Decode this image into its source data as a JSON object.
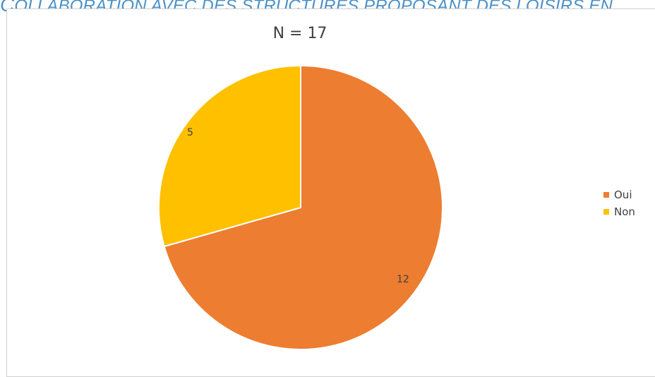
{
  "page": {
    "heading_lead": "C",
    "heading_rest": "OLLABORATION AVEC DES STRUCTURES PROPOSANT DES LOISIRS EN"
  },
  "chart_data": {
    "type": "pie",
    "title": "N = 17",
    "categories": [
      "Oui",
      "Non"
    ],
    "values": [
      12,
      5
    ],
    "data_labels": [
      "12",
      "5"
    ],
    "colors": [
      "#ed7d31",
      "#ffc000"
    ],
    "legend_placement": "right",
    "slice_order": "clockwise from top"
  }
}
